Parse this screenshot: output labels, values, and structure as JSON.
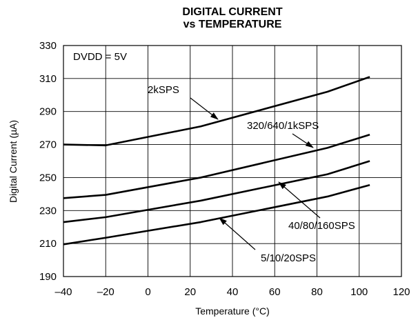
{
  "chart_data": {
    "type": "line",
    "title_lines": [
      "DIGITAL CURRENT",
      "vs TEMPERATURE"
    ],
    "xlabel": "Temperature (°C)",
    "ylabel": "Digital Current (µA)",
    "xlim": [
      -40,
      120
    ],
    "ylim": [
      190,
      330
    ],
    "xticks": [
      -40,
      -20,
      0,
      20,
      40,
      60,
      80,
      100,
      120
    ],
    "xtick_labels": [
      "–40",
      "–20",
      "0",
      "20",
      "40",
      "60",
      "80",
      "100",
      "120"
    ],
    "yticks": [
      190,
      210,
      230,
      250,
      270,
      290,
      310,
      330
    ],
    "ytick_labels": [
      "190",
      "210",
      "230",
      "250",
      "270",
      "290",
      "310",
      "330"
    ],
    "grid": true,
    "condition_label": "DVDD = 5V",
    "series": [
      {
        "name": "2kSPS",
        "x": [
          -40,
          -20,
          25,
          85,
          105
        ],
        "y": [
          270,
          269.5,
          281,
          302,
          311
        ]
      },
      {
        "name": "320/640/1kSPS",
        "x": [
          -40,
          -20,
          25,
          85,
          105
        ],
        "y": [
          237.5,
          239.5,
          250,
          268,
          276
        ]
      },
      {
        "name": "40/80/160SPS",
        "x": [
          -40,
          -20,
          25,
          85,
          105
        ],
        "y": [
          223,
          226,
          236,
          252,
          260
        ]
      },
      {
        "name": "5/10/20SPS",
        "x": [
          -40,
          -20,
          25,
          85,
          105
        ],
        "y": [
          209.5,
          213.5,
          223,
          238.5,
          245.5
        ]
      }
    ],
    "annotations": [
      {
        "text": "2kSPS",
        "arrow_to": [
          29,
          283
        ]
      },
      {
        "text": "320/640/1kSPS",
        "arrow_to": [
          72,
          267
        ]
      },
      {
        "text": "40/80/160SPS",
        "arrow_to": [
          51,
          247
        ]
      },
      {
        "text": "5/10/20SPS",
        "arrow_to": [
          33,
          225
        ]
      }
    ]
  }
}
